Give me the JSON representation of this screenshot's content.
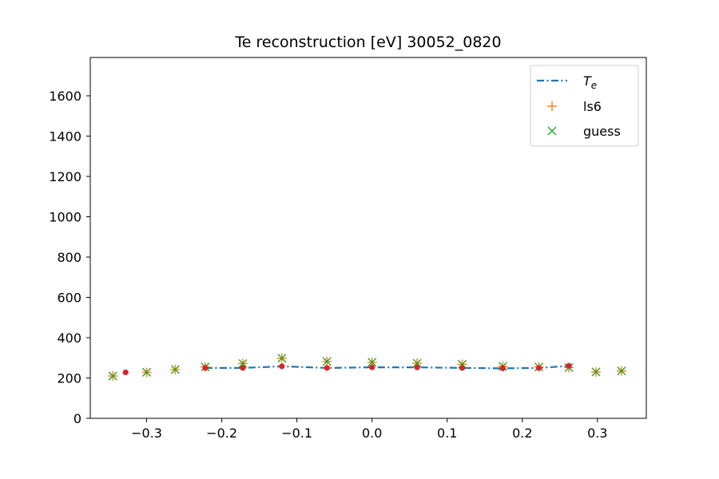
{
  "chart_data": {
    "type": "scatter",
    "title": "Te reconstruction [eV]   30052_0820",
    "xlabel": "",
    "ylabel": "",
    "xlim": [
      -0.375,
      0.365
    ],
    "ylim": [
      0,
      1790
    ],
    "xticks": [
      -0.3,
      -0.2,
      -0.1,
      0.0,
      0.1,
      0.2,
      0.3
    ],
    "xtick_labels": [
      "−0.3",
      "−0.2",
      "−0.1",
      "0.0",
      "0.1",
      "0.2",
      "0.3"
    ],
    "yticks": [
      0,
      200,
      400,
      600,
      800,
      1000,
      1200,
      1400,
      1600
    ],
    "ytick_labels": [
      "0",
      "200",
      "400",
      "600",
      "800",
      "1000",
      "1200",
      "1400",
      "1600"
    ],
    "grid": false,
    "legend_position": "top-right",
    "series": [
      {
        "name": "T_e",
        "legend_main": "T",
        "legend_sub": "e",
        "style": "dash-dot line",
        "color": "#1f77b4",
        "x": [
          -0.222,
          -0.172,
          -0.12,
          -0.06,
          0.0,
          0.06,
          0.12,
          0.174,
          0.222,
          0.262
        ],
        "y": [
          250,
          250,
          258,
          250,
          253,
          253,
          250,
          248,
          250,
          260
        ]
      },
      {
        "name": "ls6",
        "marker": "plus",
        "color": "#ff7f0e",
        "x": [
          -0.345,
          -0.3,
          -0.262,
          -0.222,
          -0.172,
          -0.12,
          -0.06,
          0.0,
          0.06,
          0.12,
          0.174,
          0.222,
          0.262,
          0.298,
          0.332
        ],
        "y": [
          210,
          228,
          242,
          255,
          272,
          298,
          282,
          278,
          273,
          268,
          258,
          255,
          252,
          230,
          235
        ]
      },
      {
        "name": "guess",
        "marker": "x",
        "color": "#2ca02c",
        "x": [
          -0.345,
          -0.3,
          -0.262,
          -0.222,
          -0.172,
          -0.12,
          -0.06,
          0.0,
          0.06,
          0.12,
          0.174,
          0.222,
          0.262,
          0.298,
          0.332
        ],
        "y": [
          210,
          228,
          242,
          255,
          272,
          298,
          282,
          278,
          273,
          268,
          258,
          255,
          252,
          230,
          235
        ]
      },
      {
        "name": "",
        "marker": "dot",
        "color": "#d62728",
        "x": [
          -0.328,
          -0.222,
          -0.172,
          -0.12,
          -0.06,
          0.0,
          0.06,
          0.12,
          0.174,
          0.222,
          0.262
        ],
        "y": [
          228,
          250,
          250,
          258,
          250,
          253,
          253,
          250,
          248,
          250,
          260
        ]
      }
    ]
  }
}
